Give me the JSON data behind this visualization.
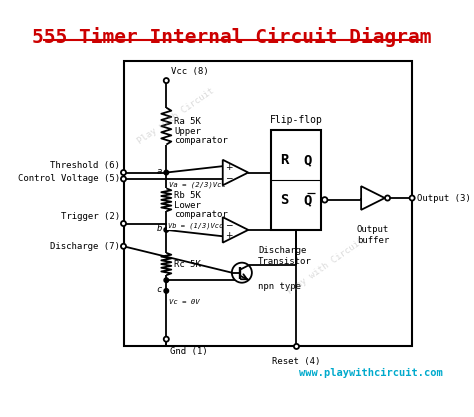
{
  "title": "555 Timer Internal Circuit Diagram",
  "title_color": "#cc0000",
  "bg_color": "#ffffff",
  "line_color": "#000000",
  "watermark": "playwithcircuit.com",
  "watermark_color": "#00aacc",
  "watermark2": "Play with Circuit",
  "pin_labels": {
    "vcc": "Vcc (8)",
    "gnd": "Gnd (1)",
    "threshold": "Threshold (6)",
    "control": "Control Voltage (5)",
    "trigger": "Trigger (2)",
    "discharge": "Discharge (7)",
    "output": "Output (3)",
    "reset": "Reset (4)"
  },
  "node_labels": {
    "a": "a",
    "b": "b",
    "c": "c",
    "va": "Va = (2/3)Vcc",
    "vb": "Vb = (1/3)Vcc",
    "vc": "Vc = 0V"
  },
  "component_labels": {
    "ra": "Ra 5K",
    "rb": "Rb 5K",
    "rc": "Rc 5K",
    "upper_comp1": "Upper",
    "upper_comp2": "comparator",
    "lower_comp1": "Lower",
    "lower_comp2": "comparator",
    "flipflop": "Flip-flop",
    "discharge_trans1": "Discharge",
    "discharge_trans2": "Transistor",
    "npn": "npn type",
    "output_buf1": "Output",
    "output_buf2": "buffer"
  },
  "font_size_title": 14,
  "font_size_label": 6.5,
  "font_size_node": 6.5,
  "font_size_comp": 6.5,
  "font_size_watermark": 7.5
}
